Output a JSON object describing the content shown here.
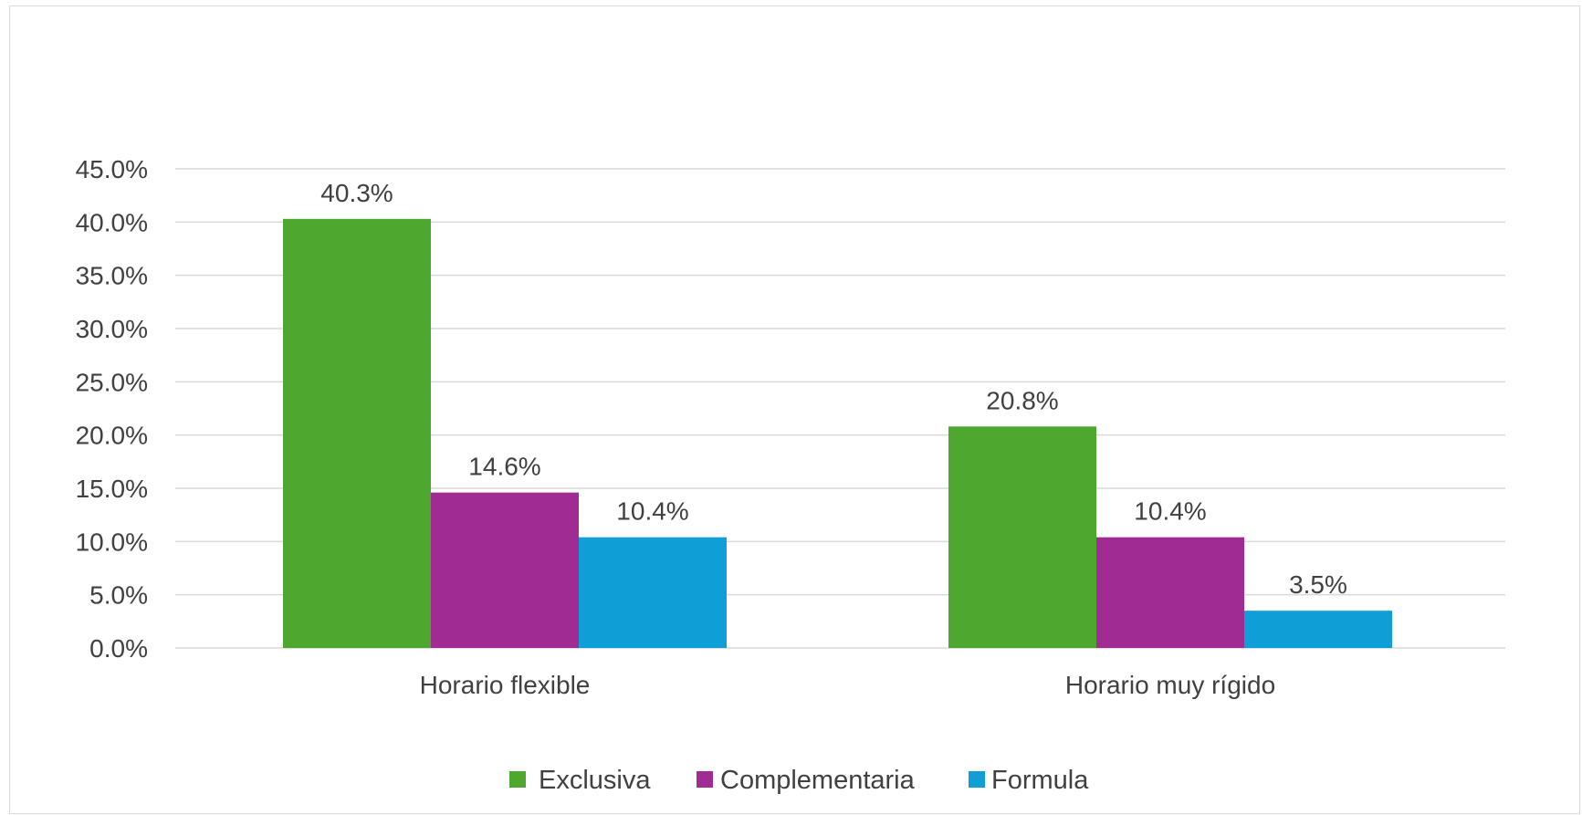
{
  "chart_data": {
    "type": "bar",
    "title": "",
    "xlabel": "",
    "ylabel": "",
    "categories": [
      "Horario flexible",
      "Horario muy rígido"
    ],
    "series": [
      {
        "name": "Exclusiva",
        "values": [
          40.3,
          20.8
        ],
        "labels": [
          "40.3%",
          "20.8%"
        ],
        "color": "#4ea72e"
      },
      {
        "name": "Complementaria",
        "values": [
          14.6,
          10.4
        ],
        "labels": [
          "14.6%",
          "10.4%"
        ],
        "color": "#a02b93"
      },
      {
        "name": "Formula",
        "values": [
          10.4,
          3.5
        ],
        "labels": [
          "10.4%",
          "3.5%"
        ],
        "color": "#0f9ed5"
      }
    ],
    "ylim": [
      0,
      45
    ],
    "yticks": [
      0,
      5,
      10,
      15,
      20,
      25,
      30,
      35,
      40,
      45
    ],
    "ytick_labels": [
      "0.0%",
      "5.0%",
      "10.0%",
      "15.0%",
      "20.0%",
      "25.0%",
      "30.0%",
      "35.0%",
      "40.0%",
      "45.0%"
    ],
    "grid": true,
    "legend_position": "bottom",
    "gridline_color": "#d9d9d9",
    "text_color": "#404040"
  }
}
